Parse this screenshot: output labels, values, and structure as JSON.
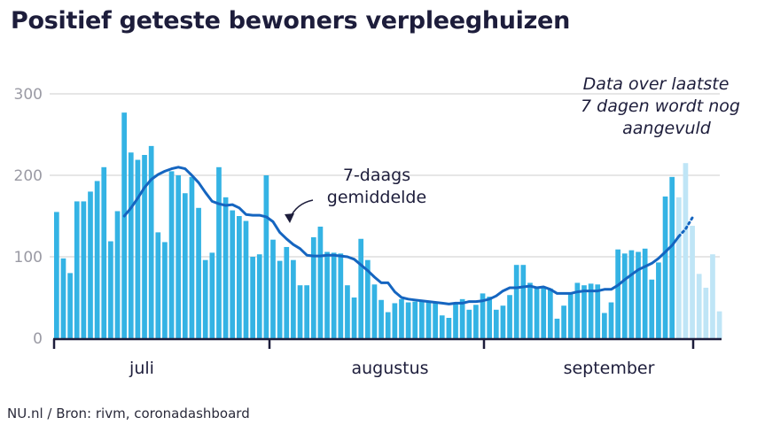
{
  "title": "Positief geteste bewoners verpleeghuizen",
  "source": "NU.nl / Bron: rivm, coronadashboard",
  "colors": {
    "bar": "#34b3e4",
    "bar_pending": "#bfe5f6",
    "line": "#1565c0",
    "grid": "#d6d6d6",
    "axis": "#1d1d3b"
  },
  "chart_data": {
    "type": "bar",
    "ylim": [
      0,
      300
    ],
    "yticks": [
      "0",
      "100",
      "200",
      "300"
    ],
    "months": [
      "juli",
      "augustus",
      "september"
    ],
    "annotation_line": [
      "7-daags",
      "gemiddelde"
    ],
    "note_lines": [
      "Data over laatste",
      "7 dagen wordt nog",
      "aangevuld"
    ],
    "values": [
      155,
      98,
      80,
      168,
      168,
      180,
      193,
      210,
      119,
      156,
      277,
      228,
      219,
      225,
      236,
      130,
      118,
      205,
      200,
      178,
      198,
      160,
      96,
      105,
      210,
      173,
      157,
      150,
      144,
      100,
      103,
      200,
      121,
      95,
      112,
      96,
      65,
      65,
      124,
      137,
      106,
      105,
      104,
      65,
      50,
      122,
      96,
      66,
      47,
      32,
      43,
      48,
      44,
      45,
      45,
      46,
      44,
      28,
      25,
      44,
      48,
      35,
      41,
      55,
      51,
      35,
      40,
      53,
      90,
      90,
      68,
      62,
      63,
      61,
      24,
      40,
      55,
      68,
      65,
      67,
      66,
      31,
      44,
      109,
      104,
      108,
      106,
      110,
      72,
      93,
      174,
      198,
      173,
      215,
      138,
      79,
      62,
      103,
      33
    ],
    "pending_from_index": 92,
    "avg": [
      null,
      null,
      null,
      null,
      null,
      null,
      null,
      null,
      null,
      null,
      150,
      160,
      172,
      185,
      195,
      201,
      205,
      208,
      210,
      208,
      200,
      191,
      179,
      168,
      165,
      163,
      164,
      160,
      152,
      151,
      151,
      149,
      143,
      130,
      122,
      115,
      110,
      102,
      101,
      101,
      102,
      102,
      101,
      100,
      97,
      90,
      83,
      75,
      68,
      68,
      57,
      50,
      48,
      47,
      46,
      45,
      44,
      43,
      42,
      43,
      43,
      45,
      45,
      46,
      48,
      52,
      58,
      62,
      62,
      63,
      64,
      62,
      63,
      60,
      55,
      55,
      55,
      57,
      58,
      58,
      58,
      60,
      60,
      65,
      72,
      78,
      84,
      88,
      92,
      98,
      106,
      114,
      125,
      null,
      null,
      null,
      null,
      null,
      null
    ],
    "avg_dotted": [
      125,
      134,
      148
    ]
  }
}
